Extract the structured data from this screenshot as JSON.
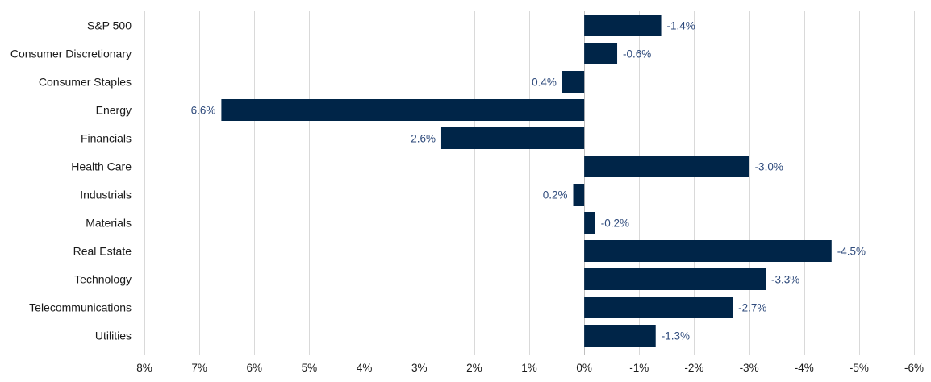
{
  "chart_data": {
    "type": "bar",
    "orientation": "horizontal",
    "x_axis_reversed": true,
    "categories": [
      "S&P 500",
      "Consumer Discretionary",
      "Consumer Staples",
      "Energy",
      "Financials",
      "Health Care",
      "Industrials",
      "Materials",
      "Real Estate",
      "Technology",
      "Telecommunications",
      "Utilities"
    ],
    "values": [
      -1.4,
      -0.6,
      0.4,
      6.6,
      2.6,
      -3.0,
      0.2,
      -0.2,
      -4.5,
      -3.3,
      -2.7,
      -1.3
    ],
    "data_labels": [
      "-1.4%",
      "-0.6%",
      "0.4%",
      "6.6%",
      "2.6%",
      "-3.0%",
      "0.2%",
      "-0.2%",
      "-4.5%",
      "-3.3%",
      "-2.7%",
      "-1.3%"
    ],
    "xlim": [
      8,
      -6
    ],
    "ticks": [
      8,
      7,
      6,
      5,
      4,
      3,
      2,
      1,
      0,
      -1,
      -2,
      -3,
      -4,
      -5,
      -6
    ],
    "tick_labels": [
      "8%",
      "7%",
      "6%",
      "5%",
      "4%",
      "3%",
      "2%",
      "1%",
      "0%",
      "-1%",
      "-2%",
      "-3%",
      "-4%",
      "-5%",
      "-6%"
    ],
    "title": "",
    "xlabel": "",
    "ylabel": "",
    "grid": true,
    "colors": {
      "bar": "#002548",
      "data_label": "#2f4b7c",
      "grid": "#d9d9d9"
    }
  }
}
